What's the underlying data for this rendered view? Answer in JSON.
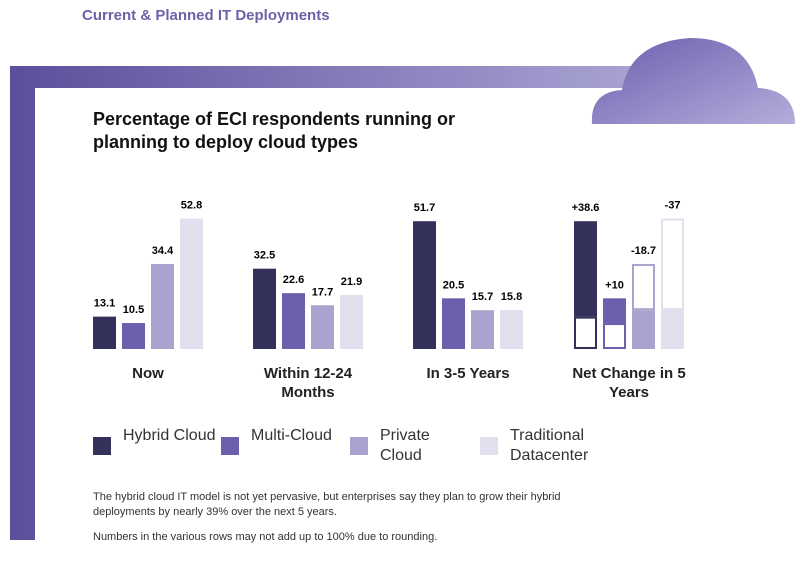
{
  "header": {
    "title": "Current & Planned IT Deployments"
  },
  "chart_data": {
    "type": "bar",
    "title": "Percentage of ECI respondents running or planning to deploy cloud types",
    "categories": [
      "Now",
      "Within 12-24 Months",
      "In 3-5 Years"
    ],
    "series": [
      {
        "name": "Hybrid Cloud",
        "color": "#33305a",
        "values": [
          13.1,
          32.5,
          51.7
        ]
      },
      {
        "name": "Multi-Cloud",
        "color": "#6a60ac",
        "values": [
          10.5,
          22.6,
          20.5
        ]
      },
      {
        "name": "Private Cloud",
        "color": "#a8a3cf",
        "values": [
          34.4,
          17.7,
          15.7
        ]
      },
      {
        "name": "Traditional Datacenter",
        "color": "#e2e0ee",
        "values": [
          52.8,
          21.9,
          15.8
        ]
      }
    ],
    "net_change": {
      "label": "Net Change in 5 Years",
      "values": [
        38.6,
        10,
        -18.7,
        -37
      ],
      "value_labels": [
        "+38.6",
        "+10",
        "-18.7",
        "-37"
      ]
    },
    "ylim": [
      0,
      53
    ],
    "notes": [
      "The hybrid cloud IT model is not yet pervasive, but enterprises say they plan to grow their hybrid deployments by nearly 39% over the next 5 years.",
      "Numbers in the various rows may not add up to 100% due to rounding."
    ]
  }
}
